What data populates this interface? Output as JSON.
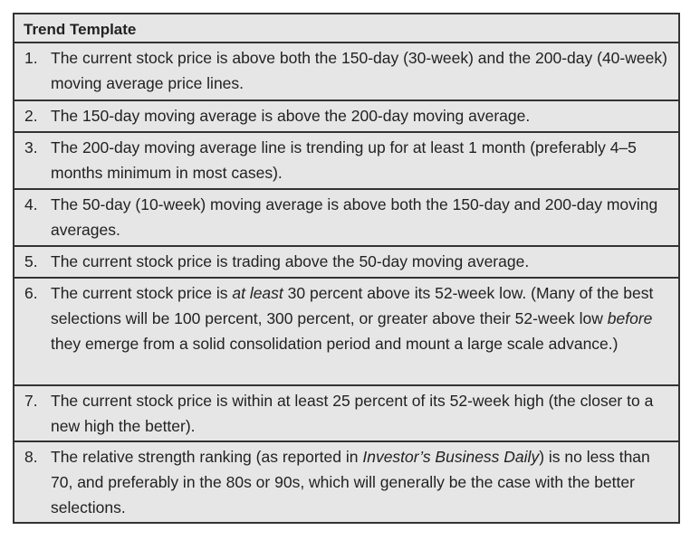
{
  "title": "Trend Template",
  "rows": [
    {
      "num": "1.",
      "parts": [
        "The current stock price is above both the 150-day (30-week) and the 200-day (40-week) moving average price lines."
      ]
    },
    {
      "num": "2.",
      "parts": [
        "The 150-day moving average is above the 200-day moving average."
      ]
    },
    {
      "num": "3.",
      "parts": [
        "The 200-day moving average line is trending up for at least 1 month (preferably 4–5 months minimum in most cases)."
      ]
    },
    {
      "num": "4.",
      "parts": [
        "The 50-day (10-week) moving average is above both the 150-day and 200-day moving averages."
      ]
    },
    {
      "num": "5.",
      "parts": [
        "The current stock price is trading above the 50-day moving average."
      ]
    },
    {
      "num": "6.",
      "parts": [
        "The current stock price is ",
        "at least",
        " 30 percent above its 52-week low. (Many of the best selections will be 100 percent, 300 percent, or greater above their 52-week low ",
        "before",
        " they emerge from a solid consolidation period and mount a large scale advance.)"
      ]
    },
    {
      "num": "7.",
      "parts": [
        "The current stock price is within at least 25 percent of its 52-week high (the closer to a new high the better)."
      ]
    },
    {
      "num": "8.",
      "parts": [
        "The relative strength ranking (as reported in ",
        "Investor’s Business Daily",
        ") is no less than 70, and preferably in the 80s or 90s, which will generally be the case with the better selections."
      ]
    }
  ]
}
